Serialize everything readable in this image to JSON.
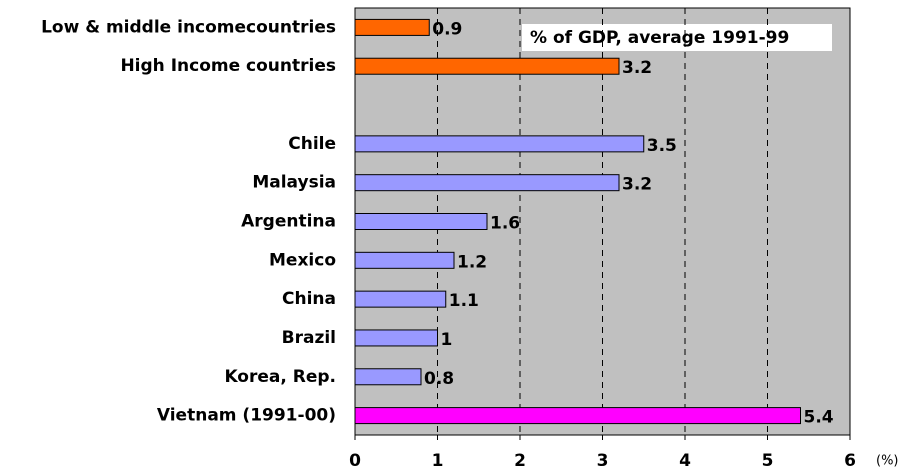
{
  "chart_data": {
    "type": "bar",
    "orientation": "horizontal",
    "annotation": "% of GDP, average 1991-99",
    "x_unit_label": "(%)",
    "categories": [
      "Low & middle incomecountries",
      "High Income countries",
      null,
      "Chile",
      "Malaysia",
      "Argentina",
      "Mexico",
      "China",
      "Brazil",
      "Korea, Rep.",
      "Vietnam (1991-00)"
    ],
    "values": [
      0.9,
      3.2,
      null,
      3.5,
      3.2,
      1.6,
      1.2,
      1.1,
      1,
      0.8,
      5.4
    ],
    "colors": [
      "#ff6600",
      "#ff6600",
      null,
      "#9999ff",
      "#9999ff",
      "#9999ff",
      "#9999ff",
      "#9999ff",
      "#9999ff",
      "#9999ff",
      "#ff00ff"
    ],
    "xlim": [
      0,
      6
    ],
    "xticks": [
      0,
      1,
      2,
      3,
      4,
      5,
      6
    ],
    "grid": true,
    "background": "#c0c0c0"
  }
}
